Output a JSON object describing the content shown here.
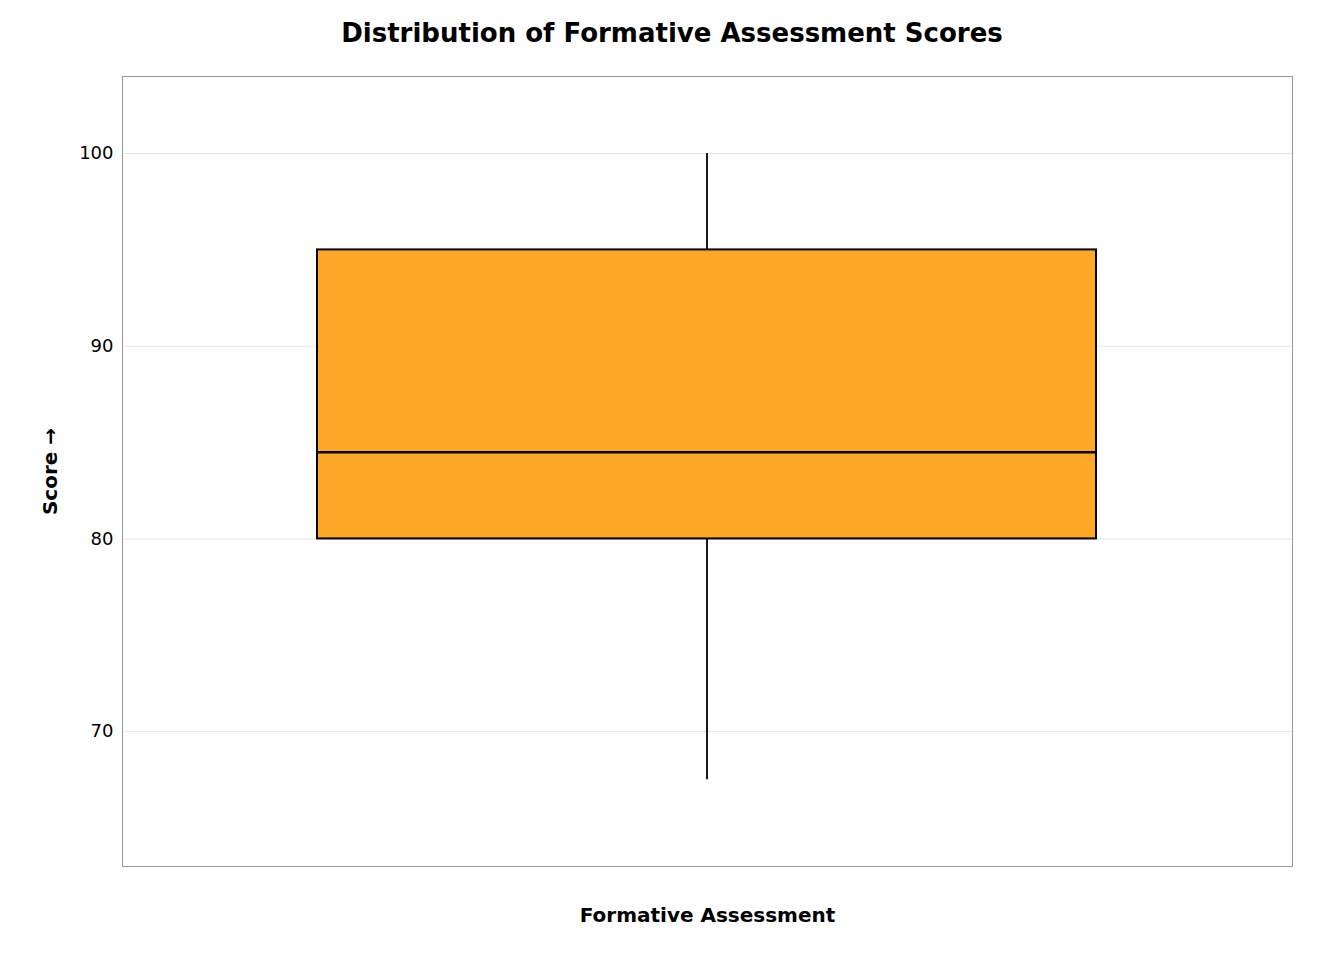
{
  "chart_data": {
    "type": "box",
    "title": "Distribution of Formative Assessment Scores",
    "xlabel": "Formative Assessment",
    "ylabel": "Score",
    "categories": [
      null
    ],
    "stats": [
      {
        "whisker_low": 67.5,
        "q1": 80,
        "median": 84.5,
        "q3": 95,
        "whisker_high": 100
      }
    ],
    "color": "#FFA726",
    "ylim": [
      63,
      104
    ],
    "yticks": [
      70,
      80,
      90,
      100
    ],
    "grid": true,
    "tick_labels": "y"
  }
}
